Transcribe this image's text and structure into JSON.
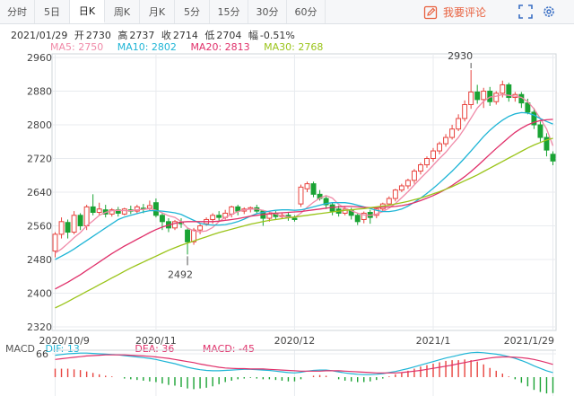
{
  "tabs": [
    {
      "label": "分时",
      "active": false
    },
    {
      "label": "5日",
      "active": false
    },
    {
      "label": "日K",
      "active": true
    },
    {
      "label": "周K",
      "active": false
    },
    {
      "label": "月K",
      "active": false
    },
    {
      "label": "5分",
      "active": false
    },
    {
      "label": "15分",
      "active": false
    },
    {
      "label": "30分",
      "active": false
    },
    {
      "label": "60分",
      "active": false
    }
  ],
  "toolbar": {
    "review_label": "我要评论",
    "review_icon": "pen-icon",
    "fullscreen_icon": "expand-icon",
    "settings_icon": "gear-icon"
  },
  "info": {
    "date": "2021/01/29",
    "open_label": "开",
    "open": "2730",
    "high_label": "高",
    "high": "2737",
    "close_label": "收",
    "close": "2714",
    "low_label": "低",
    "low": "2704",
    "change_label": "幅",
    "change": "-0.51%"
  },
  "ma_legend": [
    {
      "label": "MA5: 2750",
      "color": "#f08aa8"
    },
    {
      "label": "MA10: 2802",
      "color": "#1fb5d6"
    },
    {
      "label": "MA20: 2813",
      "color": "#e0306a"
    },
    {
      "label": "MA30: 2768",
      "color": "#9ac419"
    }
  ],
  "macd_legend": [
    {
      "label": "MACD",
      "color": "#555555"
    },
    {
      "label": "DIF: 13",
      "color": "#1fb5d6"
    },
    {
      "label": "DEA: 36",
      "color": "#e0306a"
    },
    {
      "label": "MACD: -45",
      "color": "#e0306a"
    }
  ],
  "colors": {
    "up": "#e8433e",
    "down": "#1aa334",
    "grid": "#e8ebef",
    "axis": "#cfd4da"
  },
  "chart_data": {
    "type": "candlestick",
    "ylim": [
      2320,
      2960
    ],
    "yticks": [
      2320,
      2400,
      2480,
      2560,
      2640,
      2720,
      2800,
      2880,
      2960
    ],
    "xticks": [
      {
        "label": "2020/10/9",
        "index": 0
      },
      {
        "label": "2020/11",
        "index": 16
      },
      {
        "label": "2020/12",
        "index": 38
      },
      {
        "label": "2021/1",
        "index": 60
      },
      {
        "label": "2021/1/29",
        "index": 79
      }
    ],
    "annotations": [
      {
        "text": "2930",
        "index": 66,
        "value": 2930
      },
      {
        "text": "2492",
        "index": 21,
        "value": 2492
      }
    ],
    "candles": [
      [
        2500,
        2540,
        2545,
        2485
      ],
      [
        2540,
        2570,
        2580,
        2530
      ],
      [
        2568,
        2545,
        2575,
        2530
      ],
      [
        2545,
        2585,
        2595,
        2540
      ],
      [
        2585,
        2560,
        2590,
        2550
      ],
      [
        2560,
        2605,
        2610,
        2550
      ],
      [
        2605,
        2592,
        2635,
        2585
      ],
      [
        2592,
        2600,
        2615,
        2585
      ],
      [
        2598,
        2588,
        2610,
        2580
      ],
      [
        2588,
        2598,
        2602,
        2582
      ],
      [
        2598,
        2590,
        2605,
        2582
      ],
      [
        2588,
        2600,
        2603,
        2585
      ],
      [
        2598,
        2595,
        2608,
        2588
      ],
      [
        2595,
        2605,
        2610,
        2590
      ],
      [
        2602,
        2600,
        2612,
        2590
      ],
      [
        2602,
        2608,
        2620,
        2596
      ],
      [
        2615,
        2585,
        2625,
        2580
      ],
      [
        2585,
        2570,
        2590,
        2550
      ],
      [
        2570,
        2555,
        2578,
        2545
      ],
      [
        2555,
        2570,
        2574,
        2550
      ],
      [
        2568,
        2565,
        2578,
        2555
      ],
      [
        2550,
        2522,
        2556,
        2492
      ],
      [
        2522,
        2550,
        2555,
        2515
      ],
      [
        2550,
        2560,
        2565,
        2540
      ],
      [
        2565,
        2575,
        2580,
        2560
      ],
      [
        2575,
        2585,
        2590,
        2565
      ],
      [
        2585,
        2580,
        2595,
        2572
      ],
      [
        2580,
        2590,
        2598,
        2575
      ],
      [
        2588,
        2605,
        2608,
        2580
      ],
      [
        2605,
        2595,
        2610,
        2585
      ],
      [
        2595,
        2600,
        2604,
        2588
      ],
      [
        2600,
        2603,
        2606,
        2592
      ],
      [
        2603,
        2595,
        2610,
        2588
      ],
      [
        2595,
        2578,
        2598,
        2560
      ],
      [
        2578,
        2588,
        2592,
        2570
      ],
      [
        2588,
        2582,
        2595,
        2575
      ],
      [
        2582,
        2585,
        2590,
        2576
      ],
      [
        2585,
        2580,
        2592,
        2572
      ],
      [
        2578,
        2575,
        2585,
        2570
      ],
      [
        2612,
        2652,
        2658,
        2605
      ],
      [
        2648,
        2660,
        2665,
        2640
      ],
      [
        2660,
        2635,
        2665,
        2628
      ],
      [
        2635,
        2625,
        2645,
        2620
      ],
      [
        2625,
        2610,
        2630,
        2600
      ],
      [
        2610,
        2595,
        2615,
        2585
      ],
      [
        2600,
        2590,
        2608,
        2582
      ],
      [
        2590,
        2600,
        2605,
        2585
      ],
      [
        2598,
        2585,
        2603,
        2575
      ],
      [
        2585,
        2570,
        2590,
        2562
      ],
      [
        2575,
        2590,
        2594,
        2566
      ],
      [
        2592,
        2580,
        2598,
        2565
      ],
      [
        2585,
        2600,
        2605,
        2578
      ],
      [
        2600,
        2612,
        2615,
        2595
      ],
      [
        2612,
        2625,
        2630,
        2608
      ],
      [
        2625,
        2645,
        2648,
        2618
      ],
      [
        2645,
        2655,
        2660,
        2640
      ],
      [
        2655,
        2668,
        2672,
        2648
      ],
      [
        2668,
        2690,
        2695,
        2660
      ],
      [
        2690,
        2705,
        2710,
        2682
      ],
      [
        2705,
        2720,
        2725,
        2698
      ],
      [
        2720,
        2738,
        2745,
        2712
      ],
      [
        2738,
        2755,
        2760,
        2730
      ],
      [
        2755,
        2770,
        2778,
        2748
      ],
      [
        2770,
        2790,
        2800,
        2765
      ],
      [
        2790,
        2815,
        2825,
        2785
      ],
      [
        2815,
        2848,
        2858,
        2808
      ],
      [
        2848,
        2878,
        2930,
        2838
      ],
      [
        2878,
        2860,
        2895,
        2850
      ],
      [
        2860,
        2880,
        2888,
        2840
      ],
      [
        2880,
        2855,
        2890,
        2845
      ],
      [
        2855,
        2875,
        2880,
        2848
      ],
      [
        2875,
        2895,
        2905,
        2865
      ],
      [
        2895,
        2865,
        2900,
        2855
      ],
      [
        2865,
        2872,
        2878,
        2855
      ],
      [
        2872,
        2852,
        2878,
        2840
      ],
      [
        2852,
        2830,
        2862,
        2825
      ],
      [
        2830,
        2800,
        2840,
        2790
      ],
      [
        2800,
        2770,
        2808,
        2760
      ],
      [
        2770,
        2740,
        2780,
        2725
      ],
      [
        2730,
        2714,
        2737,
        2704
      ]
    ],
    "series": [
      {
        "name": "MA5",
        "color": "#f08aa8",
        "values": [
          2495,
          2505,
          2518,
          2532,
          2544,
          2560,
          2572,
          2585,
          2592,
          2596,
          2597,
          2596,
          2596,
          2598,
          2599,
          2601,
          2597,
          2591,
          2584,
          2580,
          2570,
          2555,
          2548,
          2546,
          2548,
          2556,
          2570,
          2580,
          2587,
          2594,
          2598,
          2600,
          2600,
          2597,
          2593,
          2588,
          2583,
          2581,
          2580,
          2590,
          2604,
          2616,
          2626,
          2632,
          2626,
          2611,
          2602,
          2596,
          2590,
          2586,
          2585,
          2588,
          2594,
          2602,
          2613,
          2627,
          2641,
          2657,
          2673,
          2688,
          2704,
          2720,
          2735,
          2753,
          2770,
          2792,
          2816,
          2840,
          2856,
          2866,
          2868,
          2872,
          2870,
          2868,
          2865,
          2855,
          2838,
          2815,
          2790,
          2750
        ]
      },
      {
        "name": "MA10",
        "color": "#1fb5d6",
        "values": [
          2480,
          2488,
          2496,
          2505,
          2515,
          2525,
          2535,
          2545,
          2555,
          2565,
          2575,
          2581,
          2585,
          2589,
          2593,
          2596,
          2596,
          2595,
          2593,
          2591,
          2587,
          2580,
          2573,
          2566,
          2563,
          2562,
          2562,
          2563,
          2566,
          2570,
          2576,
          2583,
          2589,
          2592,
          2595,
          2597,
          2598,
          2598,
          2597,
          2598,
          2601,
          2605,
          2609,
          2613,
          2615,
          2615,
          2615,
          2613,
          2609,
          2605,
          2601,
          2597,
          2594,
          2594,
          2596,
          2600,
          2607,
          2616,
          2626,
          2637,
          2649,
          2662,
          2676,
          2690,
          2705,
          2721,
          2738,
          2755,
          2772,
          2787,
          2800,
          2811,
          2820,
          2826,
          2829,
          2828,
          2823,
          2815,
          2808,
          2802
        ]
      },
      {
        "name": "MA20",
        "color": "#e0306a",
        "values": [
          2410,
          2418,
          2426,
          2435,
          2444,
          2454,
          2464,
          2474,
          2484,
          2494,
          2503,
          2512,
          2520,
          2528,
          2536,
          2544,
          2551,
          2557,
          2562,
          2566,
          2569,
          2570,
          2570,
          2570,
          2570,
          2570,
          2571,
          2573,
          2575,
          2577,
          2580,
          2583,
          2585,
          2587,
          2589,
          2590,
          2591,
          2592,
          2593,
          2594,
          2596,
          2598,
          2600,
          2602,
          2604,
          2605,
          2606,
          2606,
          2605,
          2604,
          2603,
          2603,
          2604,
          2605,
          2606,
          2608,
          2611,
          2615,
          2620,
          2626,
          2632,
          2639,
          2647,
          2656,
          2666,
          2677,
          2689,
          2702,
          2716,
          2730,
          2744,
          2757,
          2770,
          2782,
          2792,
          2800,
          2806,
          2810,
          2812,
          2813
        ]
      },
      {
        "name": "MA30",
        "color": "#9ac419",
        "values": [
          2365,
          2372,
          2380,
          2388,
          2396,
          2404,
          2412,
          2420,
          2428,
          2436,
          2444,
          2452,
          2460,
          2467,
          2474,
          2481,
          2488,
          2495,
          2502,
          2508,
          2514,
          2519,
          2524,
          2529,
          2534,
          2539,
          2544,
          2548,
          2552,
          2556,
          2560,
          2564,
          2567,
          2570,
          2573,
          2575,
          2577,
          2579,
          2581,
          2583,
          2585,
          2587,
          2589,
          2591,
          2593,
          2595,
          2597,
          2598,
          2600,
          2601,
          2603,
          2605,
          2607,
          2609,
          2612,
          2615,
          2618,
          2622,
          2626,
          2631,
          2636,
          2641,
          2647,
          2653,
          2660,
          2667,
          2674,
          2681,
          2689,
          2697,
          2705,
          2713,
          2721,
          2729,
          2737,
          2745,
          2752,
          2758,
          2764,
          2768
        ]
      }
    ],
    "macd": {
      "ytick": "66",
      "dif": [
        62,
        64,
        66,
        67,
        68,
        68,
        67,
        66,
        65,
        64,
        63,
        61,
        59,
        57,
        55,
        53,
        50,
        46,
        42,
        38,
        33,
        28,
        24,
        21,
        19,
        18,
        18,
        19,
        20,
        21,
        22,
        22,
        21,
        20,
        19,
        17,
        15,
        13,
        12,
        14,
        17,
        19,
        20,
        20,
        18,
        15,
        12,
        10,
        8,
        7,
        7,
        8,
        10,
        13,
        16,
        20,
        24,
        29,
        34,
        39,
        44,
        49,
        54,
        58,
        62,
        66,
        69,
        70,
        69,
        67,
        65,
        62,
        58,
        53,
        47,
        40,
        32,
        25,
        18,
        13
      ],
      "dea": [
        50,
        52,
        54,
        56,
        58,
        60,
        61,
        62,
        63,
        63,
        63,
        63,
        62,
        61,
        60,
        59,
        57,
        55,
        53,
        50,
        47,
        44,
        41,
        37,
        34,
        31,
        28,
        26,
        25,
        24,
        24,
        23,
        23,
        23,
        22,
        21,
        20,
        19,
        18,
        17,
        17,
        17,
        17,
        18,
        18,
        18,
        17,
        16,
        15,
        14,
        13,
        12,
        12,
        12,
        12,
        13,
        15,
        17,
        19,
        22,
        25,
        28,
        31,
        34,
        38,
        41,
        45,
        48,
        51,
        54,
        56,
        57,
        57,
        56,
        55,
        53,
        50,
        46,
        41,
        36
      ],
      "hist": [
        24,
        24,
        24,
        22,
        20,
        16,
        12,
        8,
        4,
        2,
        0,
        -4,
        -6,
        -8,
        -10,
        -12,
        -14,
        -18,
        -22,
        -24,
        -28,
        -32,
        -34,
        -32,
        -30,
        -26,
        -20,
        -14,
        -10,
        -6,
        -4,
        -2,
        -4,
        -6,
        -6,
        -8,
        -10,
        -12,
        -12,
        -6,
        0,
        4,
        6,
        4,
        0,
        -6,
        -10,
        -12,
        -14,
        -14,
        -12,
        -8,
        -4,
        2,
        8,
        14,
        18,
        24,
        30,
        34,
        38,
        42,
        46,
        48,
        48,
        50,
        48,
        44,
        36,
        26,
        18,
        10,
        2,
        -6,
        -16,
        -26,
        -36,
        -42,
        -46,
        -45
      ]
    }
  }
}
